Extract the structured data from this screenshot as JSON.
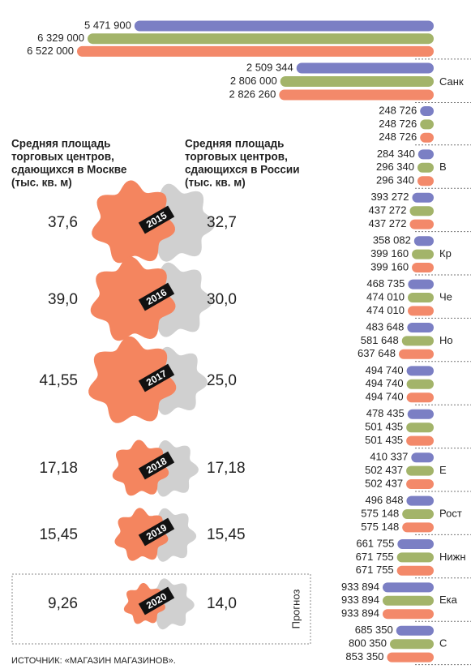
{
  "left": {
    "moscow_header": [
      "Средняя площадь",
      "торговых центров,",
      "сдающихся в Москве",
      "(тыс. кв. м)"
    ],
    "russia_header": [
      "Средняя площадь",
      "торговых центров,",
      "сдающихся в России",
      "(тыс. кв. м)"
    ],
    "colors": [
      "#f4855f",
      "#d0d0d0"
    ],
    "forecast": "Прогноз",
    "rows": [
      {
        "year": "2015",
        "moscow": 37.6,
        "moscow_label": "37,6",
        "russia": 32.7,
        "russia_label": "32,7"
      },
      {
        "year": "2016",
        "moscow": 39.0,
        "moscow_label": "39,0",
        "russia": 30.0,
        "russia_label": "30,0"
      },
      {
        "year": "2017",
        "moscow": 41.55,
        "moscow_label": "41,55",
        "russia": 25.0,
        "russia_label": "25,0"
      },
      {
        "year": "2018",
        "moscow": 17.18,
        "moscow_label": "17,18",
        "russia": 17.18,
        "russia_label": "17,18"
      },
      {
        "year": "2019",
        "moscow": 15.45,
        "moscow_label": "15,45",
        "russia": 15.45,
        "russia_label": "15,45"
      },
      {
        "year": "2020",
        "moscow": 9.26,
        "moscow_label": "9,26",
        "russia": 14.0,
        "russia_label": "14,0"
      }
    ]
  },
  "right": {
    "colors": [
      "#7b7fc4",
      "#a3b46a",
      "#f3896a"
    ],
    "groups": [
      {
        "values": [
          5471900,
          6329000,
          6522000
        ],
        "value_labels": [
          "5 471 900",
          "6 329 000",
          "6 522 000"
        ]
      },
      {
        "label": "Санк",
        "values": [
          2509344,
          2806000,
          2826260
        ],
        "value_labels": [
          "2 509 344",
          "2 806 000",
          "2 826 260"
        ]
      },
      {
        "values": [
          248726,
          248726,
          248726
        ],
        "value_labels": [
          "248 726",
          "248 726",
          "248 726"
        ]
      },
      {
        "label": "В",
        "values": [
          284340,
          296340,
          296340
        ],
        "value_labels": [
          "284 340",
          "296 340",
          "296 340"
        ]
      },
      {
        "values": [
          393272,
          437272,
          437272
        ],
        "value_labels": [
          "393 272",
          "437 272",
          "437 272"
        ]
      },
      {
        "label": "Кр",
        "values": [
          358082,
          399160,
          399160
        ],
        "value_labels": [
          "358 082",
          "399 160",
          "399 160"
        ]
      },
      {
        "label": "Че",
        "values": [
          468735,
          474010,
          474010
        ],
        "value_labels": [
          "468 735",
          "474 010",
          "474 010"
        ]
      },
      {
        "label": "Но",
        "values": [
          483648,
          581648,
          637648
        ],
        "value_labels": [
          "483 648",
          "581 648",
          "637 648"
        ]
      },
      {
        "values": [
          494740,
          494740,
          494740
        ],
        "value_labels": [
          "494 740",
          "494 740",
          "494 740"
        ]
      },
      {
        "values": [
          478435,
          501435,
          501435
        ],
        "value_labels": [
          "478 435",
          "501 435",
          "501 435"
        ]
      },
      {
        "label": "Е",
        "values": [
          410337,
          502437,
          502437
        ],
        "value_labels": [
          "410 337",
          "502 437",
          "502 437"
        ]
      },
      {
        "label": "Рост",
        "values": [
          496848,
          575148,
          575148
        ],
        "value_labels": [
          "496 848",
          "575 148",
          "575 148"
        ]
      },
      {
        "label": "Нижн",
        "values": [
          661755,
          671755,
          671755
        ],
        "value_labels": [
          "661 755",
          "671 755",
          "671 755"
        ]
      },
      {
        "label": "Ека",
        "values": [
          933894,
          933894,
          933894
        ],
        "value_labels": [
          "933 894",
          "933 894",
          "933 894"
        ]
      },
      {
        "label": "С",
        "values": [
          685350,
          800350,
          853350
        ],
        "value_labels": [
          "685 350",
          "800 350",
          "853 350"
        ]
      }
    ]
  },
  "source": "ИСТОЧНИК: «МАГАЗИН МАГАЗИНОВ»."
}
